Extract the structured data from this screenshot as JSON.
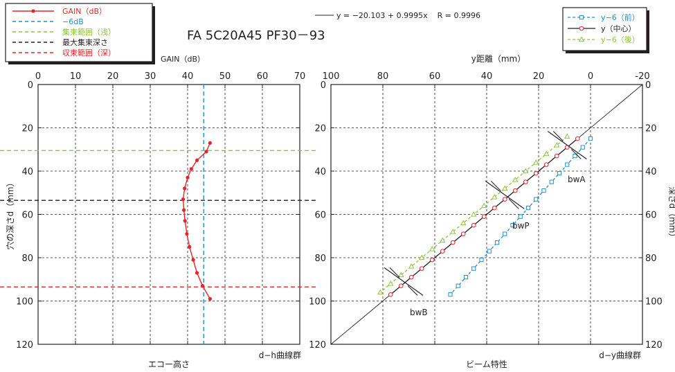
{
  "title": "FA 5C20A45 PF30－93",
  "regression_text": "y = −20.103 + 0.9995x    R = 0.9996",
  "left_legend": [
    {
      "label": "GAIN（dB）",
      "color": "#e8232a",
      "style": "solid-dot"
    },
    {
      "label": "−6dB",
      "color": "#1f8fd0",
      "style": "dashed"
    },
    {
      "label": "集束範囲（浅）",
      "color": "#8cc63f",
      "style": "dashed"
    },
    {
      "label": "最大集束深さ",
      "color": "#231f20",
      "style": "dashed"
    },
    {
      "label": "収束範囲（深）",
      "color": "#e8232a",
      "style": "dashed"
    }
  ],
  "right_legend": [
    {
      "label": "y−6（前）",
      "color": "#1f8fd0",
      "style": "dash-square"
    },
    {
      "label": "y（中心）",
      "color": "#231f20",
      "style": "solid-circle"
    },
    {
      "label": "y−6（後）",
      "color": "#8cc63f",
      "style": "dash-triangle"
    }
  ],
  "chart_data": [
    {
      "type": "line",
      "top_xlabel": "GAIN（dB）",
      "bottom_label": "エコー高さ",
      "corner_label": "d−h曲線群",
      "ylabel": "穴の深さd（mm）",
      "xlim": [
        0,
        70
      ],
      "ylim": [
        0,
        120
      ],
      "y_reversed": true,
      "x_ticks": [
        0,
        10,
        20,
        30,
        40,
        50,
        60,
        70
      ],
      "y_ticks": [
        0,
        20,
        40,
        60,
        80,
        100,
        120
      ],
      "grid": true,
      "series": [
        {
          "name": "GAIN（dB）",
          "color": "#e8232a",
          "points": [
            [
              46,
              27
            ],
            [
              45,
              31
            ],
            [
              42.5,
              35
            ],
            [
              41,
              39
            ],
            [
              40,
              43
            ],
            [
              39.2,
              48
            ],
            [
              38.8,
              53
            ],
            [
              39,
              58
            ],
            [
              39.3,
              63
            ],
            [
              39.8,
              69
            ],
            [
              40.5,
              75
            ],
            [
              41.5,
              81
            ],
            [
              42.5,
              87
            ],
            [
              44,
              93
            ],
            [
              46,
              99
            ]
          ]
        }
      ],
      "reference_lines": [
        {
          "name": "−6dB",
          "orientation": "vertical",
          "value": 44.3,
          "color": "#1f8fd0"
        },
        {
          "name": "集束範囲（浅）",
          "orientation": "horizontal",
          "value": 30.5,
          "color": "#8cc63f"
        },
        {
          "name": "最大集束深さ",
          "orientation": "horizontal",
          "value": 53.5,
          "color": "#231f20"
        },
        {
          "name": "収束範囲（深）",
          "orientation": "horizontal",
          "value": 93.5,
          "color": "#e8232a"
        }
      ]
    },
    {
      "type": "line",
      "top_xlabel": "y距離（mm）",
      "bottom_label": "ビーム特性",
      "corner_label": "d−y曲線群",
      "ylabel": "深さd（mm）",
      "xlim": [
        100,
        -20
      ],
      "ylim": [
        0,
        120
      ],
      "y_reversed": true,
      "x_ticks": [
        100,
        80,
        60,
        40,
        20,
        0,
        -20
      ],
      "y_ticks": [
        0,
        20,
        40,
        60,
        80,
        100,
        120
      ],
      "grid": true,
      "series": [
        {
          "name": "y−6（前）",
          "color": "#1f8fd0",
          "marker": "square",
          "points": [
            [
              0,
              25
            ],
            [
              3,
              29
            ],
            [
              6,
              33
            ],
            [
              9,
              37
            ],
            [
              12,
              41
            ],
            [
              15,
              45
            ],
            [
              18,
              49
            ],
            [
              21,
              53
            ],
            [
              24,
              57
            ],
            [
              27,
              61
            ],
            [
              30,
              65
            ],
            [
              33,
              69
            ],
            [
              36,
              73
            ],
            [
              39,
              77
            ],
            [
              42,
              81
            ],
            [
              45,
              85
            ],
            [
              48,
              89
            ],
            [
              51,
              93
            ],
            [
              54,
              97
            ]
          ]
        },
        {
          "name": "y（中心）",
          "color": "#231f20",
          "marker": "circle",
          "points": [
            [
              5,
              25
            ],
            [
              9,
              29
            ],
            [
              13,
              33
            ],
            [
              17,
              37
            ],
            [
              21,
              41
            ],
            [
              25,
              45
            ],
            [
              29,
              49
            ],
            [
              33,
              53
            ],
            [
              37,
              57
            ],
            [
              41,
              61
            ],
            [
              45,
              65
            ],
            [
              49,
              69
            ],
            [
              53,
              73
            ],
            [
              57,
              77
            ],
            [
              61,
              81
            ],
            [
              65,
              85
            ],
            [
              69,
              89
            ],
            [
              73,
              93
            ],
            [
              77,
              97
            ]
          ]
        },
        {
          "name": "y−6（後）",
          "color": "#8cc63f",
          "marker": "triangle",
          "points": [
            [
              9,
              24
            ],
            [
              13,
              28
            ],
            [
              17,
              32
            ],
            [
              21,
              36
            ],
            [
              25,
              40
            ],
            [
              29,
              44
            ],
            [
              33,
              48
            ],
            [
              37,
              52
            ],
            [
              41,
              56
            ],
            [
              45,
              60
            ],
            [
              49,
              64
            ],
            [
              53,
              68
            ],
            [
              57,
              72
            ],
            [
              61,
              76
            ],
            [
              65,
              80
            ],
            [
              69,
              84
            ],
            [
              73,
              88
            ],
            [
              77,
              92
            ],
            [
              81,
              96
            ]
          ]
        }
      ],
      "diagonal": [
        [
          100,
          120
        ],
        [
          -20,
          0
        ]
      ],
      "annotations": [
        "bwA",
        "bwP",
        "bwB"
      ]
    }
  ]
}
